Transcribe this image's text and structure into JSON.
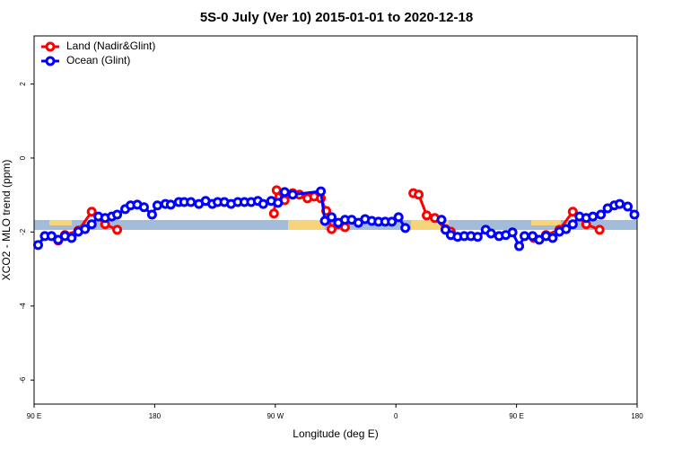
{
  "chart_data": {
    "type": "line",
    "title": "5S-0 July (Ver 10)   2015-01-01 to 2020-12-18",
    "xlabel": "Longitude (deg E)",
    "ylabel": "XCO2 - MLO trend (ppm)",
    "xlim": [
      90,
      540
    ],
    "ylim": [
      -6.65,
      3.3
    ],
    "xticks": [
      {
        "value": 90,
        "label": "90 E"
      },
      180,
      {
        "value": 270,
        "label": "90 W"
      },
      {
        "value": 360,
        "label": "0"
      },
      {
        "value": 450,
        "label": "90 E"
      },
      {
        "value": 540,
        "label": "180"
      }
    ],
    "yticks": [
      -6,
      -4,
      -2,
      0,
      2
    ],
    "legend": "top-left",
    "series": [
      {
        "name": "Land (Nadir&Glint)",
        "color": "#ff0000",
        "x": [
          108,
          113,
          123,
          133,
          143,
          152,
          null,
          269,
          271,
          277,
          283,
          288,
          294,
          299,
          304,
          308,
          312,
          317,
          322,
          null,
          373,
          377,
          383,
          389,
          397,
          401,
          null,
          463,
          472,
          482,
          492,
          502,
          512
        ],
        "values": [
          -2.23,
          -2.08,
          -1.96,
          -1.45,
          -1.79,
          -1.94,
          null,
          -1.5,
          -0.87,
          -1.14,
          -0.95,
          -0.99,
          -1.09,
          -1.04,
          -1.09,
          -1.43,
          -1.92,
          -1.79,
          -1.87,
          null,
          -0.95,
          -0.99,
          -1.55,
          -1.62,
          -1.92,
          -1.99,
          null,
          -2.16,
          -2.08,
          -1.94,
          -1.45,
          -1.79,
          -1.94
        ]
      },
      {
        "name": "Ocean (Glint)",
        "color": "#0000ff",
        "x": [
          93,
          98,
          103,
          108,
          113,
          118,
          123,
          128,
          133,
          138,
          143,
          148,
          152,
          158,
          162,
          167,
          172,
          178,
          182,
          188,
          192,
          198,
          202,
          207,
          213,
          218,
          223,
          227,
          232,
          237,
          242,
          247,
          252,
          257,
          261,
          267,
          272,
          277,
          283,
          304,
          307,
          312,
          317,
          322,
          327,
          332,
          337,
          342,
          347,
          352,
          357,
          362,
          367,
          null,
          394,
          397,
          401,
          406,
          411,
          416,
          421,
          427,
          431,
          437,
          442,
          447,
          452,
          456,
          462,
          467,
          472,
          477,
          482,
          487,
          492,
          497,
          502,
          507,
          513,
          518,
          523,
          527,
          533,
          538
        ],
        "values": [
          -2.35,
          -2.11,
          -2.11,
          -2.21,
          -2.11,
          -2.16,
          -1.99,
          -1.92,
          -1.79,
          -1.58,
          -1.62,
          -1.58,
          -1.53,
          -1.38,
          -1.28,
          -1.26,
          -1.33,
          -1.53,
          -1.28,
          -1.24,
          -1.26,
          -1.19,
          -1.19,
          -1.19,
          -1.24,
          -1.16,
          -1.24,
          -1.19,
          -1.19,
          -1.24,
          -1.19,
          -1.19,
          -1.19,
          -1.16,
          -1.24,
          -1.16,
          -1.21,
          -0.92,
          -0.99,
          -0.9,
          -1.7,
          -1.6,
          -1.75,
          -1.67,
          -1.67,
          -1.75,
          -1.65,
          -1.7,
          -1.72,
          -1.72,
          -1.72,
          -1.6,
          -1.89,
          null,
          -1.67,
          -1.94,
          -2.08,
          -2.13,
          -2.11,
          -2.11,
          -2.13,
          -1.94,
          -2.04,
          -2.11,
          -2.08,
          -2.01,
          -2.38,
          -2.11,
          -2.11,
          -2.21,
          -2.11,
          -2.16,
          -1.99,
          -1.92,
          -1.79,
          -1.58,
          -1.62,
          -1.58,
          -1.53,
          -1.36,
          -1.28,
          -1.24,
          -1.31,
          -1.53
        ]
      }
    ]
  }
}
